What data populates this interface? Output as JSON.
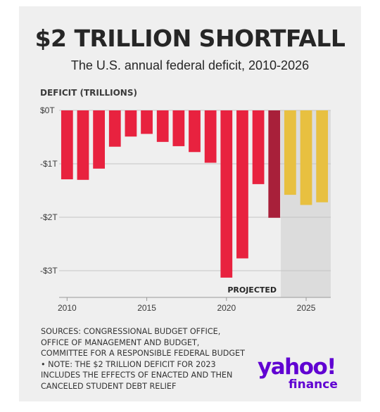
{
  "header": {
    "title": "$2 TRILLION SHORTFALL",
    "subtitle": "The U.S. annual federal deficit, 2010-2026"
  },
  "footer": {
    "sources": "SOURCES: CONGRESSIONAL BUDGET OFFICE, OFFICE OF MANAGEMENT AND BUDGET, COMMITTEE FOR A RESPONSIBLE FEDERAL BUDGET • NOTE: THE $2 TRILLION DEFICIT FOR 2023 INCLUDES THE EFFECTS OF ENACTED AND THEN CANCELED STUDENT DEBT RELIEF",
    "logo_main": "yahoo!",
    "logo_sub": "finance"
  },
  "colors": {
    "actual": "#e8223f",
    "highlight": "#a8203a",
    "projected": "#e8c040",
    "projected_band": "#dcdcdc",
    "grid": "#c4c4c4",
    "text": "#3a3a3a"
  },
  "chart_data": {
    "type": "bar",
    "title": "$2 TRILLION SHORTFALL",
    "subtitle": "The U.S. annual federal deficit, 2010-2026",
    "ylabel": "DEFICIT (TRILLIONS)",
    "xlabel": "",
    "x": [
      2010,
      2011,
      2012,
      2013,
      2014,
      2015,
      2016,
      2017,
      2018,
      2019,
      2020,
      2021,
      2022,
      2023,
      2024,
      2025,
      2026
    ],
    "values": [
      -1.29,
      -1.3,
      -1.09,
      -0.68,
      -0.49,
      -0.44,
      -0.59,
      -0.67,
      -0.78,
      -0.98,
      -3.13,
      -2.77,
      -1.38,
      -2.01,
      -1.58,
      -1.77,
      -1.72
    ],
    "kinds": [
      "actual",
      "actual",
      "actual",
      "actual",
      "actual",
      "actual",
      "actual",
      "actual",
      "actual",
      "actual",
      "actual",
      "actual",
      "actual",
      "highlight",
      "projected",
      "projected",
      "projected"
    ],
    "ylim": [
      -3.5,
      0
    ],
    "yticks": [
      {
        "value": 0,
        "label": "$0T"
      },
      {
        "value": -1,
        "label": "-$1T"
      },
      {
        "value": -2,
        "label": "-$2T"
      },
      {
        "value": -3,
        "label": "-$3T"
      }
    ],
    "xticks": [
      {
        "value": 2010,
        "label": "2010"
      },
      {
        "value": 2015,
        "label": "2015"
      },
      {
        "value": 2020,
        "label": "2020"
      },
      {
        "value": 2025,
        "label": "2025"
      }
    ],
    "annotation": "PROJECTED",
    "projected_from": 2024,
    "grid": true,
    "legend": "none"
  }
}
